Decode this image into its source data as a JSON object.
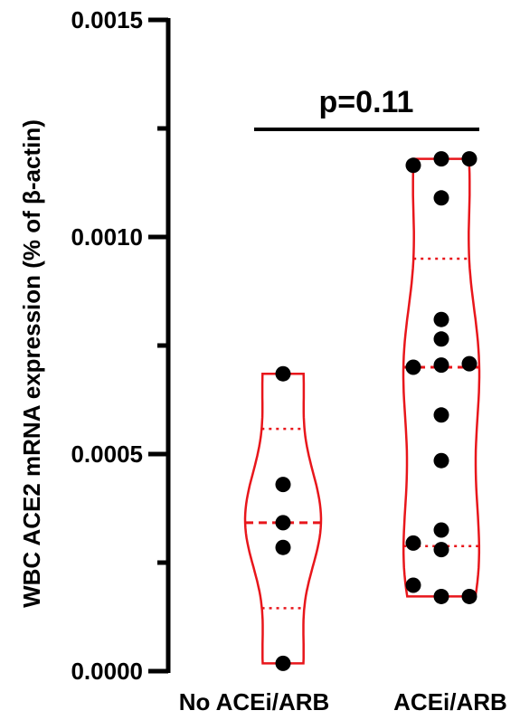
{
  "chart_data": {
    "type": "violin",
    "ylabel": "WBC ACE2 mRNA expression (% of β-actin)",
    "xlabel": "",
    "ylim": [
      0,
      0.0015
    ],
    "yticks": [
      "0.0000",
      "0.0005",
      "0.0010",
      "0.0015"
    ],
    "categories": [
      "No ACEi/ARB",
      "ACEi/ARB"
    ],
    "series": [
      {
        "category": "No ACEi/ARB",
        "points": [
          0.000685,
          0.00043,
          0.000342,
          0.000285,
          1.8e-05
        ],
        "median": 0.000342,
        "q1": 0.000145,
        "q3": 0.000558,
        "min": 1.8e-05,
        "max": 0.000685
      },
      {
        "category": "ACEi/ARB",
        "points": [
          0.00118,
          0.001165,
          0.00118,
          0.00109,
          0.00081,
          0.000765,
          0.000705,
          0.0007,
          0.000708,
          0.00059,
          0.000485,
          0.000325,
          0.00028,
          0.000295,
          0.000172,
          0.000198,
          0.000172
        ],
        "median": 0.0007,
        "q1": 0.000288,
        "q3": 0.00095,
        "min": 0.000172,
        "max": 0.00118
      }
    ],
    "annotation": "p=0.11",
    "colors": {
      "violin": "#e8161b",
      "point": "#000000",
      "axis": "#000000"
    }
  }
}
